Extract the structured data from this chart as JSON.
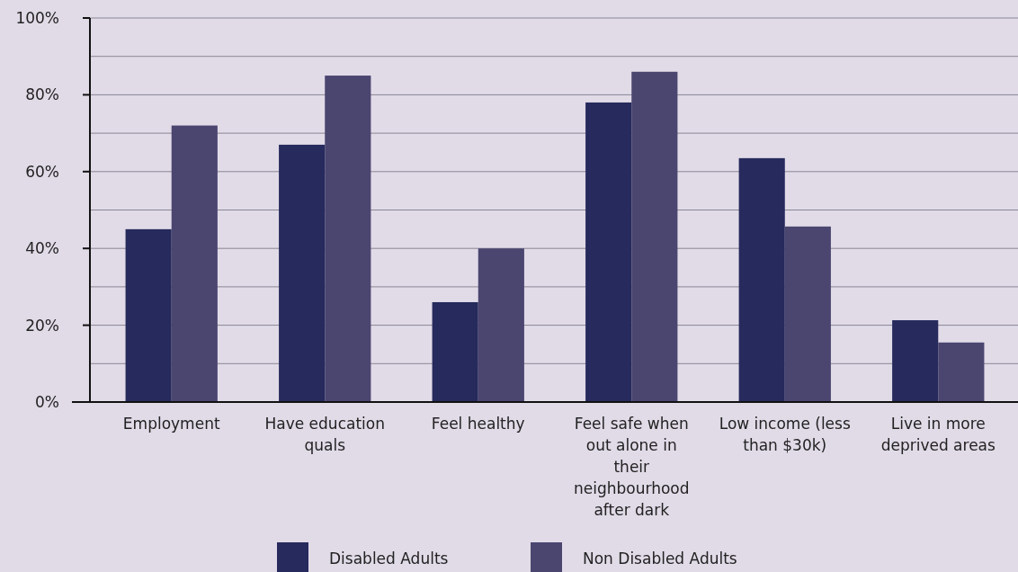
{
  "chart_data": {
    "type": "bar",
    "categories": [
      "Employment",
      "Have education quals",
      "Feel healthy",
      "Feel safe when out alone in their neighbourhood after dark",
      "Low income (less than $30k)",
      "Live in more deprived areas"
    ],
    "series": [
      {
        "name": "Disabled Adults",
        "color": "#262a5c",
        "values": [
          45,
          67,
          26,
          78,
          63.5,
          21.3
        ]
      },
      {
        "name": "Non Disabled Adults",
        "color": "#4b4670",
        "values": [
          72,
          85,
          40,
          86,
          45.7,
          15.5
        ]
      }
    ],
    "ylim": [
      0,
      100
    ],
    "yticks": [
      {
        "value": 0,
        "label": "0%"
      },
      {
        "value": 10,
        "label": null
      },
      {
        "value": 20,
        "label": "20%"
      },
      {
        "value": 30,
        "label": null
      },
      {
        "value": 40,
        "label": "40%"
      },
      {
        "value": 50,
        "label": null
      },
      {
        "value": 60,
        "label": "60%"
      },
      {
        "value": 70,
        "label": null
      },
      {
        "value": 80,
        "label": "80%"
      },
      {
        "value": 90,
        "label": null
      },
      {
        "value": 100,
        "label": "100%"
      }
    ],
    "grid": "y",
    "legend": "bottom"
  }
}
